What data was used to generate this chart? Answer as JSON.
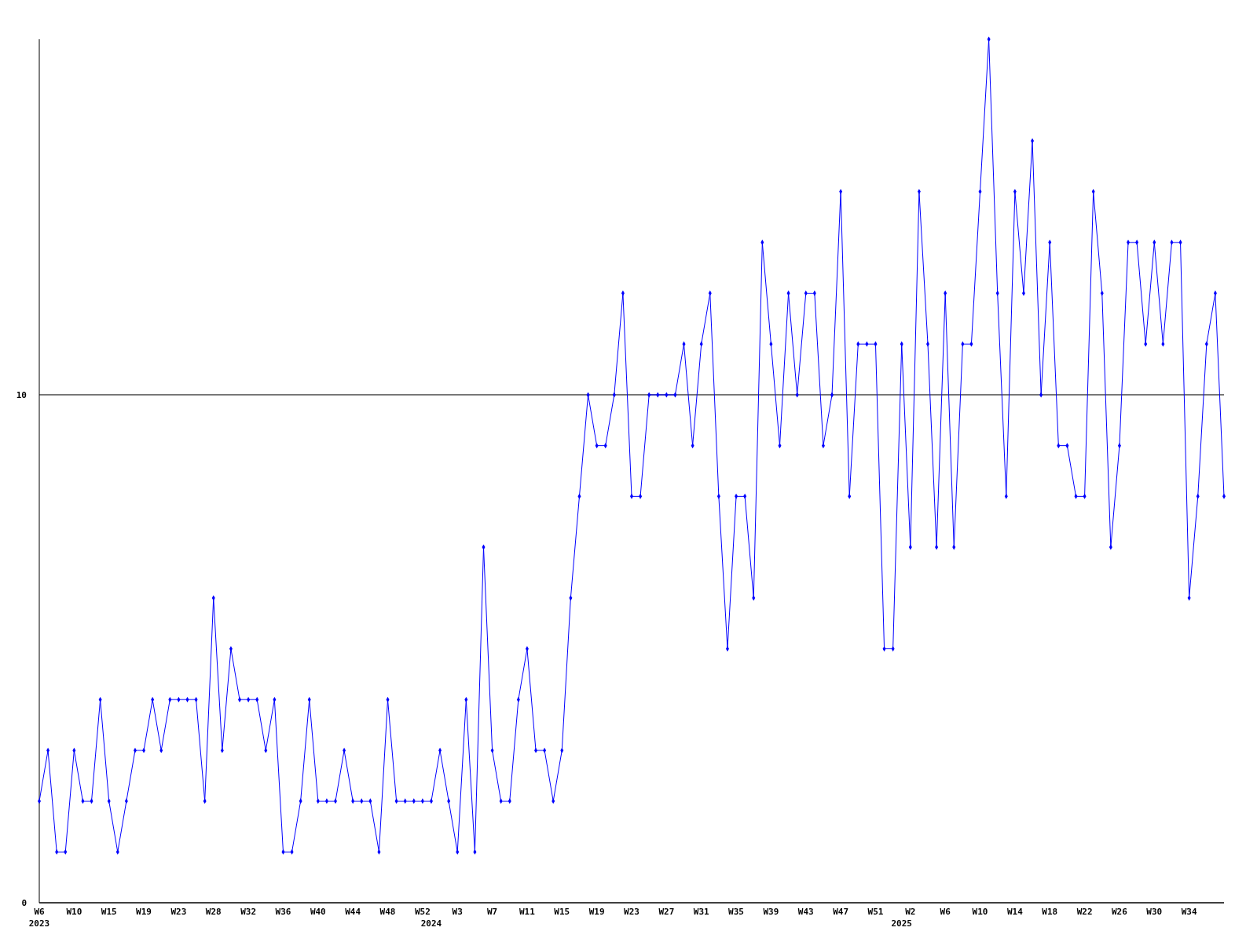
{
  "chart_data": {
    "type": "line",
    "categories": [
      "W6\n2023",
      null,
      null,
      null,
      "W10",
      null,
      null,
      null,
      "W15",
      null,
      null,
      null,
      "W19",
      null,
      null,
      null,
      "W23",
      null,
      null,
      null,
      "W28",
      null,
      null,
      null,
      "W32",
      null,
      null,
      null,
      "W36",
      null,
      null,
      null,
      "W40",
      null,
      null,
      null,
      "W44",
      null,
      null,
      null,
      "W48",
      null,
      null,
      null,
      "W52",
      "\n2024",
      null,
      null,
      "W3",
      null,
      null,
      null,
      "W7",
      null,
      null,
      null,
      "W11",
      null,
      null,
      null,
      "W15",
      null,
      null,
      null,
      "W19",
      null,
      null,
      null,
      "W23",
      null,
      null,
      null,
      "W27",
      null,
      null,
      null,
      "W31",
      null,
      null,
      null,
      "W35",
      null,
      null,
      null,
      "W39",
      null,
      null,
      null,
      "W43",
      null,
      null,
      null,
      "W47",
      null,
      null,
      null,
      "W51",
      null,
      null,
      "\n2025",
      "W2",
      null,
      null,
      null,
      "W6",
      null,
      null,
      null,
      "W10",
      null,
      null,
      null,
      "W14",
      null,
      null,
      null,
      "W18",
      null,
      null,
      null,
      "W22",
      null,
      null,
      null,
      "W26",
      null,
      null,
      null,
      "W30",
      null,
      null,
      null,
      "W34",
      null,
      null,
      null,
      null
    ],
    "series": [
      {
        "color": "#0000ff",
        "values": [
          2,
          3,
          1,
          1,
          3,
          2,
          2,
          4,
          2,
          1,
          2,
          3,
          3,
          4,
          3,
          4,
          4,
          4,
          4,
          2,
          6,
          3,
          5,
          4,
          4,
          4,
          3,
          4,
          1,
          1,
          2,
          4,
          2,
          2,
          2,
          3,
          2,
          2,
          2,
          1,
          4,
          2,
          2,
          2,
          2,
          2,
          3,
          2,
          1,
          4,
          1,
          7,
          3,
          2,
          2,
          4,
          5,
          3,
          3,
          2,
          3,
          6,
          8,
          10,
          9,
          9,
          10,
          12,
          8,
          8,
          10,
          10,
          10,
          10,
          11,
          9,
          11,
          12,
          8,
          5,
          8,
          8,
          6,
          13,
          11,
          9,
          12,
          10,
          12,
          12,
          9,
          10,
          14,
          8,
          11,
          11,
          11,
          5,
          5,
          11,
          7,
          14,
          11,
          7,
          12,
          7,
          11,
          11,
          14,
          17,
          12,
          8,
          14,
          12,
          15,
          10,
          13,
          9,
          9,
          8,
          8,
          14,
          12,
          7,
          9,
          13,
          13,
          11,
          13,
          11,
          13,
          13,
          6,
          8,
          11,
          12,
          8
        ]
      }
    ],
    "ylim": [
      0,
      17
    ],
    "yticks": [
      0,
      10
    ],
    "grid": "y",
    "marker": "diamond",
    "line_style": "solid"
  }
}
